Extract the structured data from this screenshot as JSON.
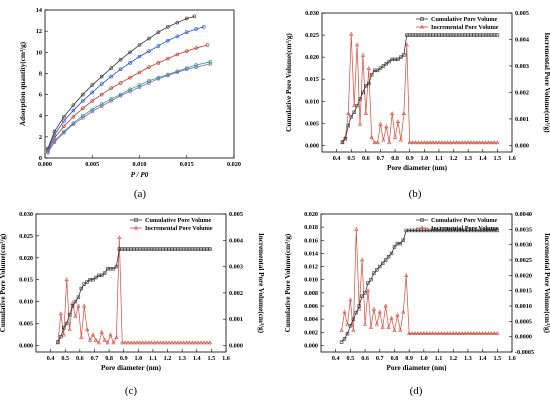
{
  "chart_data": [
    {
      "panel": "(a)",
      "type": "line",
      "title": "",
      "xlabel": "P / P0",
      "ylabel": "Adsorption quantity(cm³/g)",
      "xlim": [
        0,
        0.02
      ],
      "ylim": [
        0,
        14
      ],
      "xticks": [
        "0.000",
        "0.005",
        "0.010",
        "0.015",
        "0.020"
      ],
      "yticks": [
        "0",
        "2",
        "4",
        "6",
        "8",
        "10",
        "12",
        "14"
      ],
      "grid": false,
      "legend": "none",
      "colors": [
        "#333333",
        "#1f4fd6",
        "#c0392b",
        "#2f9e6e",
        "#7a63c9"
      ],
      "series": [
        {
          "x": [
            0.0003,
            0.001,
            0.002,
            0.003,
            0.004,
            0.005,
            0.006,
            0.007,
            0.008,
            0.009,
            0.01,
            0.011,
            0.012,
            0.013,
            0.014,
            0.015,
            0.0158
          ],
          "y": [
            0.9,
            2.5,
            3.9,
            5.0,
            6.0,
            6.9,
            7.7,
            8.5,
            9.3,
            10.0,
            10.7,
            11.3,
            11.9,
            12.4,
            12.8,
            13.2,
            13.4
          ]
        },
        {
          "x": [
            0.0003,
            0.001,
            0.002,
            0.003,
            0.004,
            0.005,
            0.006,
            0.007,
            0.008,
            0.009,
            0.01,
            0.011,
            0.012,
            0.013,
            0.014,
            0.015,
            0.016,
            0.0168
          ],
          "y": [
            0.8,
            2.2,
            3.5,
            4.5,
            5.4,
            6.2,
            7.0,
            7.7,
            8.4,
            9.0,
            9.6,
            10.1,
            10.6,
            11.1,
            11.5,
            11.9,
            12.2,
            12.4
          ]
        },
        {
          "x": [
            0.0003,
            0.001,
            0.002,
            0.003,
            0.004,
            0.005,
            0.006,
            0.007,
            0.008,
            0.009,
            0.01,
            0.011,
            0.012,
            0.013,
            0.014,
            0.015,
            0.016,
            0.0172
          ],
          "y": [
            0.7,
            1.9,
            3.0,
            3.9,
            4.7,
            5.4,
            6.0,
            6.6,
            7.1,
            7.6,
            8.1,
            8.6,
            9.0,
            9.4,
            9.8,
            10.1,
            10.4,
            10.7
          ]
        },
        {
          "x": [
            0.0003,
            0.001,
            0.002,
            0.003,
            0.004,
            0.005,
            0.006,
            0.007,
            0.008,
            0.009,
            0.01,
            0.011,
            0.012,
            0.013,
            0.014,
            0.015,
            0.016,
            0.0175
          ],
          "y": [
            0.6,
            1.6,
            2.5,
            3.3,
            4.0,
            4.6,
            5.1,
            5.6,
            6.0,
            6.5,
            6.9,
            7.3,
            7.6,
            7.9,
            8.2,
            8.5,
            8.8,
            9.1
          ]
        },
        {
          "x": [
            0.0003,
            0.001,
            0.002,
            0.003,
            0.004,
            0.005,
            0.006,
            0.007,
            0.008,
            0.009,
            0.01,
            0.011,
            0.012,
            0.013,
            0.014,
            0.015,
            0.016,
            0.0175
          ],
          "y": [
            0.5,
            1.5,
            2.4,
            3.2,
            3.8,
            4.4,
            4.9,
            5.4,
            5.9,
            6.3,
            6.7,
            7.1,
            7.5,
            7.8,
            8.1,
            8.4,
            8.6,
            8.9
          ]
        }
      ]
    },
    {
      "panel": "(b)",
      "type": "line",
      "title": "",
      "xlabel": "Pore diameter (nm)",
      "ylabel": "Cumulative Pore Volume(cm³/g)",
      "ylabel_right": "Incremental Pore Volume(cm³/g)",
      "xlim": [
        0.3,
        1.6
      ],
      "ylim": [
        -0.0015,
        0.03
      ],
      "ylim_right": [
        -0.00025,
        0.005
      ],
      "xticks": [
        "0.4",
        "0.5",
        "0.6",
        "0.7",
        "0.8",
        "0.9",
        "1.0",
        "1.1",
        "1.2",
        "1.3",
        "1.4",
        "1.5",
        "1.6"
      ],
      "yticks": [
        "0.000",
        "0.005",
        "0.010",
        "0.015",
        "0.020",
        "0.025",
        "0.030"
      ],
      "yticks_right": [
        "0.000",
        "0.001",
        "0.002",
        "0.003",
        "0.004",
        "0.005"
      ],
      "legend": "top-right",
      "legend_entries": [
        "Cumulative Pore Volume",
        "Incremental Pore Volume"
      ],
      "colors": [
        "#333333",
        "#d64b3c"
      ],
      "cumulative": {
        "x": [
          0.44,
          0.46,
          0.48,
          0.5,
          0.52,
          0.54,
          0.56,
          0.58,
          0.6,
          0.62,
          0.64,
          0.66,
          0.68,
          0.7,
          0.72,
          0.74,
          0.76,
          0.78,
          0.8,
          0.82,
          0.84,
          0.86,
          0.88,
          0.9,
          1.5
        ],
        "y": [
          0.0008,
          0.0015,
          0.0045,
          0.0065,
          0.0075,
          0.009,
          0.0105,
          0.012,
          0.0135,
          0.014,
          0.016,
          0.017,
          0.017,
          0.0175,
          0.018,
          0.0185,
          0.019,
          0.0195,
          0.0195,
          0.0195,
          0.02,
          0.0205,
          0.025,
          0.025,
          0.025
        ]
      },
      "incremental": {
        "x": [
          0.44,
          0.46,
          0.48,
          0.5,
          0.52,
          0.54,
          0.56,
          0.58,
          0.6,
          0.62,
          0.64,
          0.66,
          0.68,
          0.7,
          0.72,
          0.74,
          0.76,
          0.78,
          0.8,
          0.82,
          0.84,
          0.86,
          0.88,
          0.9,
          1.5
        ],
        "y": [
          0.0001,
          0.0003,
          0.0012,
          0.0042,
          0.0015,
          0.0038,
          0.0008,
          0.0034,
          0.0012,
          0.0029,
          0.0003,
          0.0001,
          0.0001,
          0.0008,
          0.0002,
          0.0007,
          0.0001,
          0.0012,
          0.0003,
          0.0009,
          0.0002,
          0.0012,
          0.0038,
          0.0001,
          0.0001
        ]
      }
    },
    {
      "panel": "(c)",
      "type": "line",
      "title": "",
      "xlabel": "Pore diameter (nm)",
      "ylabel": "Cumulative Pore Volume(cm³/g)",
      "ylabel_right": "Incremental Pore Volume(cm³/g)",
      "xlim": [
        0.3,
        1.6
      ],
      "ylim": [
        -0.0015,
        0.03
      ],
      "ylim_right": [
        -0.00025,
        0.005
      ],
      "xticks": [
        "0.4",
        "0.5",
        "0.6",
        "0.7",
        "0.8",
        "0.9",
        "1.0",
        "1.1",
        "1.2",
        "1.3",
        "1.4",
        "1.5",
        "1.6"
      ],
      "yticks": [
        "0.000",
        "0.005",
        "0.010",
        "0.015",
        "0.020",
        "0.025",
        "0.030"
      ],
      "yticks_right": [
        "0.000",
        "0.001",
        "0.002",
        "0.003",
        "0.004",
        "0.005"
      ],
      "legend": "top-right",
      "legend_entries": [
        "Cumulative Pore Volume",
        "Incremental Pore Volume"
      ],
      "colors": [
        "#333333",
        "#d64b3c"
      ],
      "cumulative": {
        "x": [
          0.45,
          0.47,
          0.49,
          0.51,
          0.53,
          0.55,
          0.57,
          0.59,
          0.61,
          0.63,
          0.65,
          0.67,
          0.69,
          0.71,
          0.73,
          0.75,
          0.77,
          0.79,
          0.81,
          0.83,
          0.85,
          0.87,
          0.89,
          1.5
        ],
        "y": [
          0.0008,
          0.002,
          0.004,
          0.005,
          0.007,
          0.009,
          0.01,
          0.011,
          0.013,
          0.014,
          0.0145,
          0.015,
          0.015,
          0.0155,
          0.016,
          0.016,
          0.0165,
          0.0175,
          0.0175,
          0.0175,
          0.018,
          0.022,
          0.022,
          0.022
        ]
      },
      "incremental": {
        "x": [
          0.45,
          0.47,
          0.49,
          0.51,
          0.53,
          0.55,
          0.57,
          0.59,
          0.61,
          0.63,
          0.65,
          0.67,
          0.69,
          0.71,
          0.73,
          0.75,
          0.77,
          0.79,
          0.81,
          0.83,
          0.85,
          0.87,
          0.89,
          1.5
        ],
        "y": [
          0.0001,
          0.0012,
          0.0004,
          0.0025,
          0.0006,
          0.0016,
          0.0011,
          0.0015,
          0.0003,
          0.0015,
          0.0006,
          0.0002,
          0.0004,
          0.0002,
          0.0001,
          0.0005,
          0.0002,
          0.0001,
          0.0004,
          0.0001,
          0.0003,
          0.0041,
          0.0001,
          0.0001
        ]
      }
    },
    {
      "panel": "(d)",
      "type": "line",
      "title": "",
      "xlabel": "Pore diameter (nm)",
      "ylabel": "Cumulative Pore Volume(cm³/g)",
      "ylabel_right": "Incremental Pore Volume(cm³/g)",
      "xlim": [
        0.3,
        1.6
      ],
      "ylim": [
        -0.001,
        0.02
      ],
      "ylim_right": [
        -0.0005,
        0.004
      ],
      "xticks": [
        "0.4",
        "0.5",
        "0.6",
        "0.7",
        "0.8",
        "0.9",
        "1.0",
        "1.1",
        "1.2",
        "1.3",
        "1.4",
        "1.5",
        "1.6"
      ],
      "yticks": [
        "0.000",
        "0.002",
        "0.004",
        "0.006",
        "0.008",
        "0.010",
        "0.012",
        "0.014",
        "0.016",
        "0.018",
        "0.020"
      ],
      "yticks_right": [
        "-0.0005",
        "0.0000",
        "0.0005",
        "0.0010",
        "0.0015",
        "0.0020",
        "0.0025",
        "0.0030",
        "0.0035",
        "0.0040"
      ],
      "legend": "top-right",
      "legend_entries": [
        "Cumulative Pore Volume",
        "Incremental Pore Volume"
      ],
      "colors": [
        "#333333",
        "#d64b3c"
      ],
      "cumulative": {
        "x": [
          0.44,
          0.46,
          0.48,
          0.5,
          0.52,
          0.54,
          0.56,
          0.58,
          0.6,
          0.62,
          0.64,
          0.66,
          0.68,
          0.7,
          0.72,
          0.74,
          0.76,
          0.78,
          0.8,
          0.82,
          0.84,
          0.86,
          0.88,
          0.9,
          1.5
        ],
        "y": [
          0.0005,
          0.001,
          0.0018,
          0.003,
          0.004,
          0.005,
          0.006,
          0.0075,
          0.008,
          0.0095,
          0.01,
          0.011,
          0.0115,
          0.012,
          0.0125,
          0.013,
          0.0135,
          0.014,
          0.015,
          0.0155,
          0.0155,
          0.016,
          0.0175,
          0.0175,
          0.0175
        ]
      },
      "incremental": {
        "x": [
          0.44,
          0.46,
          0.48,
          0.5,
          0.52,
          0.54,
          0.56,
          0.58,
          0.6,
          0.62,
          0.64,
          0.66,
          0.68,
          0.7,
          0.72,
          0.74,
          0.76,
          0.78,
          0.8,
          0.82,
          0.84,
          0.86,
          0.88,
          0.9,
          1.5
        ],
        "y": [
          0.0002,
          0.0008,
          0.0004,
          0.0012,
          0.0002,
          0.0035,
          0.0009,
          0.0025,
          0.0004,
          0.0015,
          0.0003,
          0.0009,
          0.0004,
          0.0008,
          0.0003,
          0.001,
          0.0003,
          0.0006,
          0.0002,
          0.0007,
          0.0002,
          0.0008,
          0.002,
          0.0001,
          0.0001
        ]
      }
    }
  ]
}
